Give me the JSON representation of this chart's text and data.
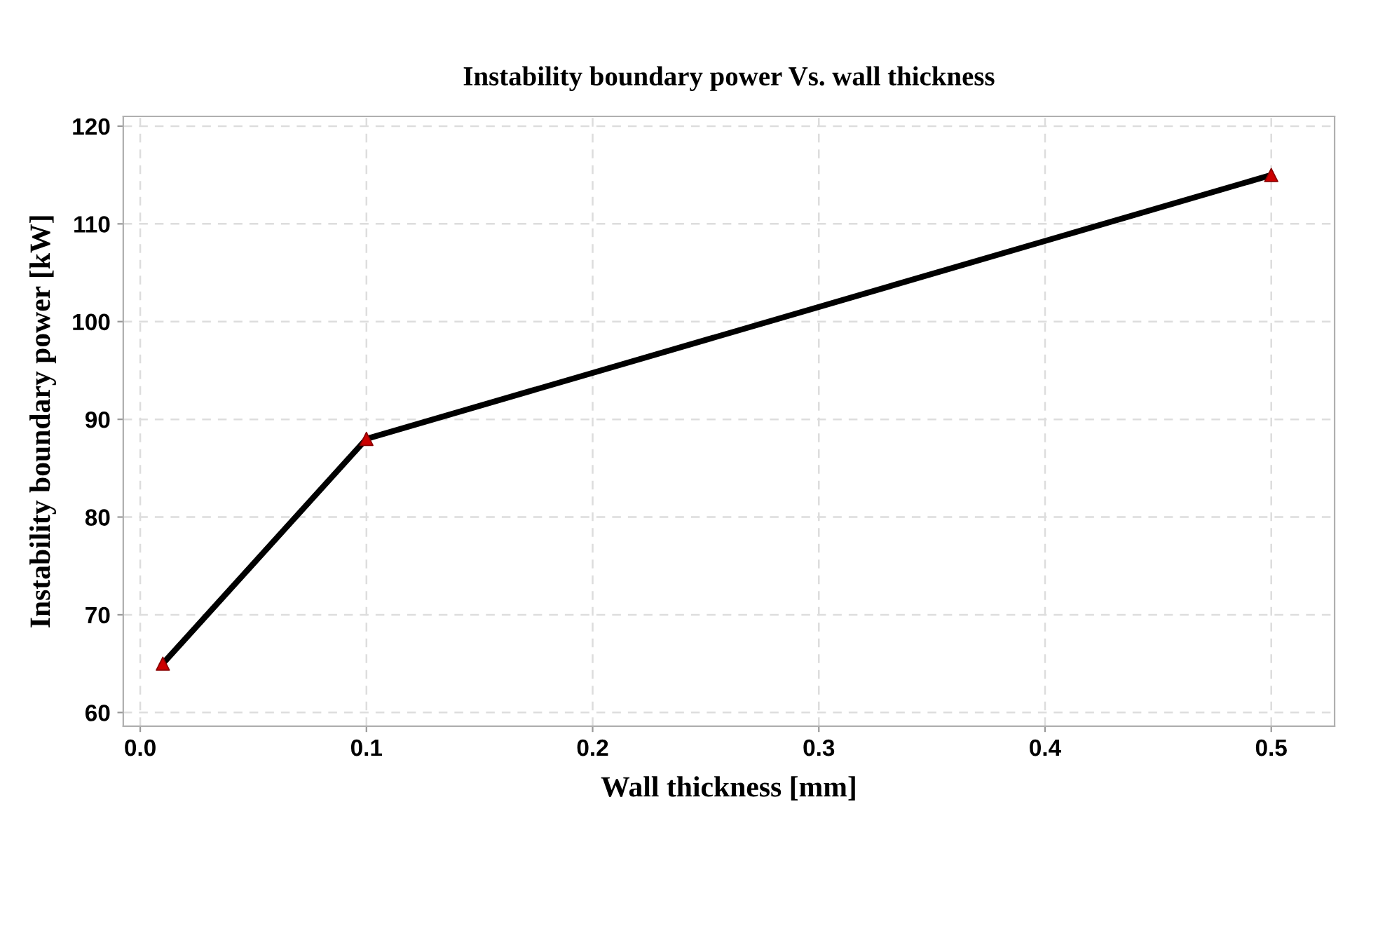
{
  "chart_data": {
    "type": "line",
    "title": "Instability boundary power Vs. wall thickness",
    "xlabel": "Wall thickness [mm]",
    "ylabel": "Instability boundary power [kW]",
    "x": [
      0.01,
      0.1,
      0.5
    ],
    "series": [
      {
        "color": "#000000",
        "values": [
          65,
          88,
          115
        ],
        "marker": "none"
      },
      {
        "type": "scatter",
        "color": "#cc0000",
        "values": [
          65,
          88,
          115
        ],
        "marker": "triangle"
      }
    ],
    "xlim": [
      -0.0075,
      0.528
    ],
    "xticks": [
      {
        "value": 0,
        "label": "0.0"
      },
      0.1,
      0.2,
      0.3,
      0.4,
      0.5
    ],
    "ylim": [
      58.6,
      121
    ],
    "yticks": [
      60,
      70,
      80,
      90,
      100,
      110,
      120
    ],
    "grid": true,
    "legend": false
  }
}
